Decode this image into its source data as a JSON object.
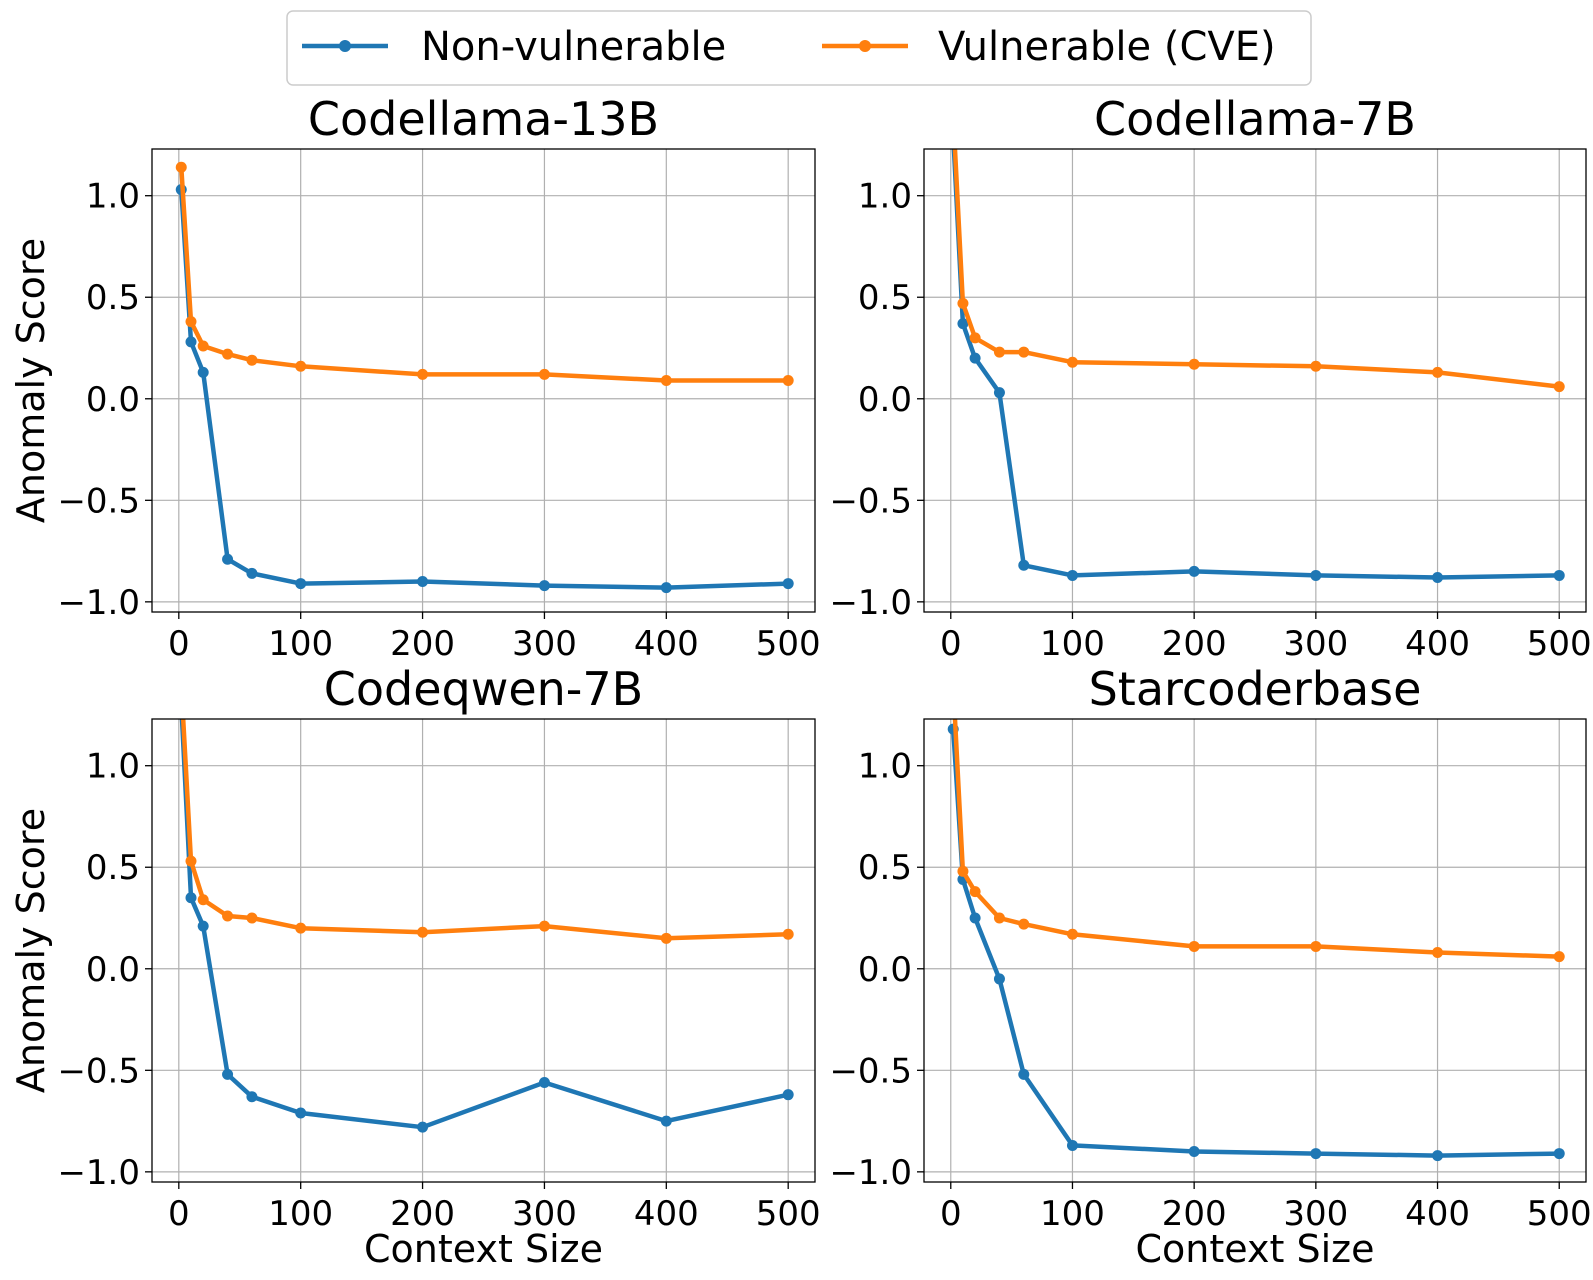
{
  "legend": {
    "items": [
      {
        "label": "Non-vulnerable",
        "color": "#1f77b4"
      },
      {
        "label": "Vulnerable (CVE)",
        "color": "#ff7f0e"
      }
    ]
  },
  "chart_data": [
    {
      "type": "line",
      "title": "Codellama-13B",
      "xlabel": "",
      "ylabel": "Anomaly Score",
      "x": [
        2,
        10,
        20,
        40,
        60,
        100,
        200,
        300,
        400,
        500
      ],
      "xticks": [
        0,
        100,
        200,
        300,
        400,
        500
      ],
      "yticks": [
        -1.0,
        -0.5,
        0.0,
        0.5,
        1.0
      ],
      "ytick_labels": [
        "−1.0",
        "−0.5",
        "0.0",
        "0.5",
        "1.0"
      ],
      "xlim": [
        -22,
        522
      ],
      "ylim": [
        -1.05,
        1.23
      ],
      "grid": true,
      "series": [
        {
          "name": "Non-vulnerable",
          "color": "#1f77b4",
          "values": [
            1.03,
            0.28,
            0.13,
            -0.79,
            -0.86,
            -0.91,
            -0.9,
            -0.92,
            -0.93,
            -0.91
          ]
        },
        {
          "name": "Vulnerable (CVE)",
          "color": "#ff7f0e",
          "values": [
            1.14,
            0.38,
            0.26,
            0.22,
            0.19,
            0.16,
            0.12,
            0.12,
            0.09,
            0.09
          ]
        }
      ]
    },
    {
      "type": "line",
      "title": "Codellama-7B",
      "xlabel": "",
      "ylabel": "",
      "x": [
        2,
        10,
        20,
        40,
        60,
        100,
        200,
        300,
        400,
        500
      ],
      "xticks": [
        0,
        100,
        200,
        300,
        400,
        500
      ],
      "yticks": [
        -1.0,
        -0.5,
        0.0,
        0.5,
        1.0
      ],
      "ytick_labels": [
        "−1.0",
        "−0.5",
        "0.0",
        "0.5",
        "1.0"
      ],
      "xlim": [
        -22,
        522
      ],
      "ylim": [
        -1.05,
        1.23
      ],
      "grid": true,
      "series": [
        {
          "name": "Non-vulnerable",
          "color": "#1f77b4",
          "values": [
            1.3,
            0.37,
            0.2,
            0.03,
            -0.82,
            -0.87,
            -0.85,
            -0.87,
            -0.88,
            -0.87
          ]
        },
        {
          "name": "Vulnerable (CVE)",
          "color": "#ff7f0e",
          "values": [
            1.4,
            0.47,
            0.3,
            0.23,
            0.23,
            0.18,
            0.17,
            0.16,
            0.13,
            0.06
          ]
        }
      ]
    },
    {
      "type": "line",
      "title": "Codeqwen-7B",
      "xlabel": "Context Size",
      "ylabel": "Anomaly Score",
      "x": [
        2,
        10,
        20,
        40,
        60,
        100,
        200,
        300,
        400,
        500
      ],
      "xticks": [
        0,
        100,
        200,
        300,
        400,
        500
      ],
      "yticks": [
        -1.0,
        -0.5,
        0.0,
        0.5,
        1.0
      ],
      "ytick_labels": [
        "−1.0",
        "−0.5",
        "0.0",
        "0.5",
        "1.0"
      ],
      "xlim": [
        -22,
        522
      ],
      "ylim": [
        -1.05,
        1.23
      ],
      "grid": true,
      "series": [
        {
          "name": "Non-vulnerable",
          "color": "#1f77b4",
          "values": [
            1.3,
            0.35,
            0.21,
            -0.52,
            -0.63,
            -0.71,
            -0.78,
            -0.56,
            -0.75,
            -0.62
          ]
        },
        {
          "name": "Vulnerable (CVE)",
          "color": "#ff7f0e",
          "values": [
            1.4,
            0.53,
            0.34,
            0.26,
            0.25,
            0.2,
            0.18,
            0.21,
            0.15,
            0.17
          ]
        }
      ]
    },
    {
      "type": "line",
      "title": "Starcoderbase",
      "xlabel": "Context Size",
      "ylabel": "",
      "x": [
        2,
        10,
        20,
        40,
        60,
        100,
        200,
        300,
        400,
        500
      ],
      "xticks": [
        0,
        100,
        200,
        300,
        400,
        500
      ],
      "yticks": [
        -1.0,
        -0.5,
        0.0,
        0.5,
        1.0
      ],
      "ytick_labels": [
        "−1.0",
        "−0.5",
        "0.0",
        "0.5",
        "1.0"
      ],
      "xlim": [
        -22,
        522
      ],
      "ylim": [
        -1.05,
        1.23
      ],
      "grid": true,
      "series": [
        {
          "name": "Non-vulnerable",
          "color": "#1f77b4",
          "values": [
            1.18,
            0.44,
            0.25,
            -0.05,
            -0.52,
            -0.87,
            -0.9,
            -0.91,
            -0.92,
            -0.91
          ]
        },
        {
          "name": "Vulnerable (CVE)",
          "color": "#ff7f0e",
          "values": [
            1.4,
            0.48,
            0.38,
            0.25,
            0.22,
            0.17,
            0.11,
            0.11,
            0.08,
            0.06
          ]
        }
      ]
    }
  ]
}
